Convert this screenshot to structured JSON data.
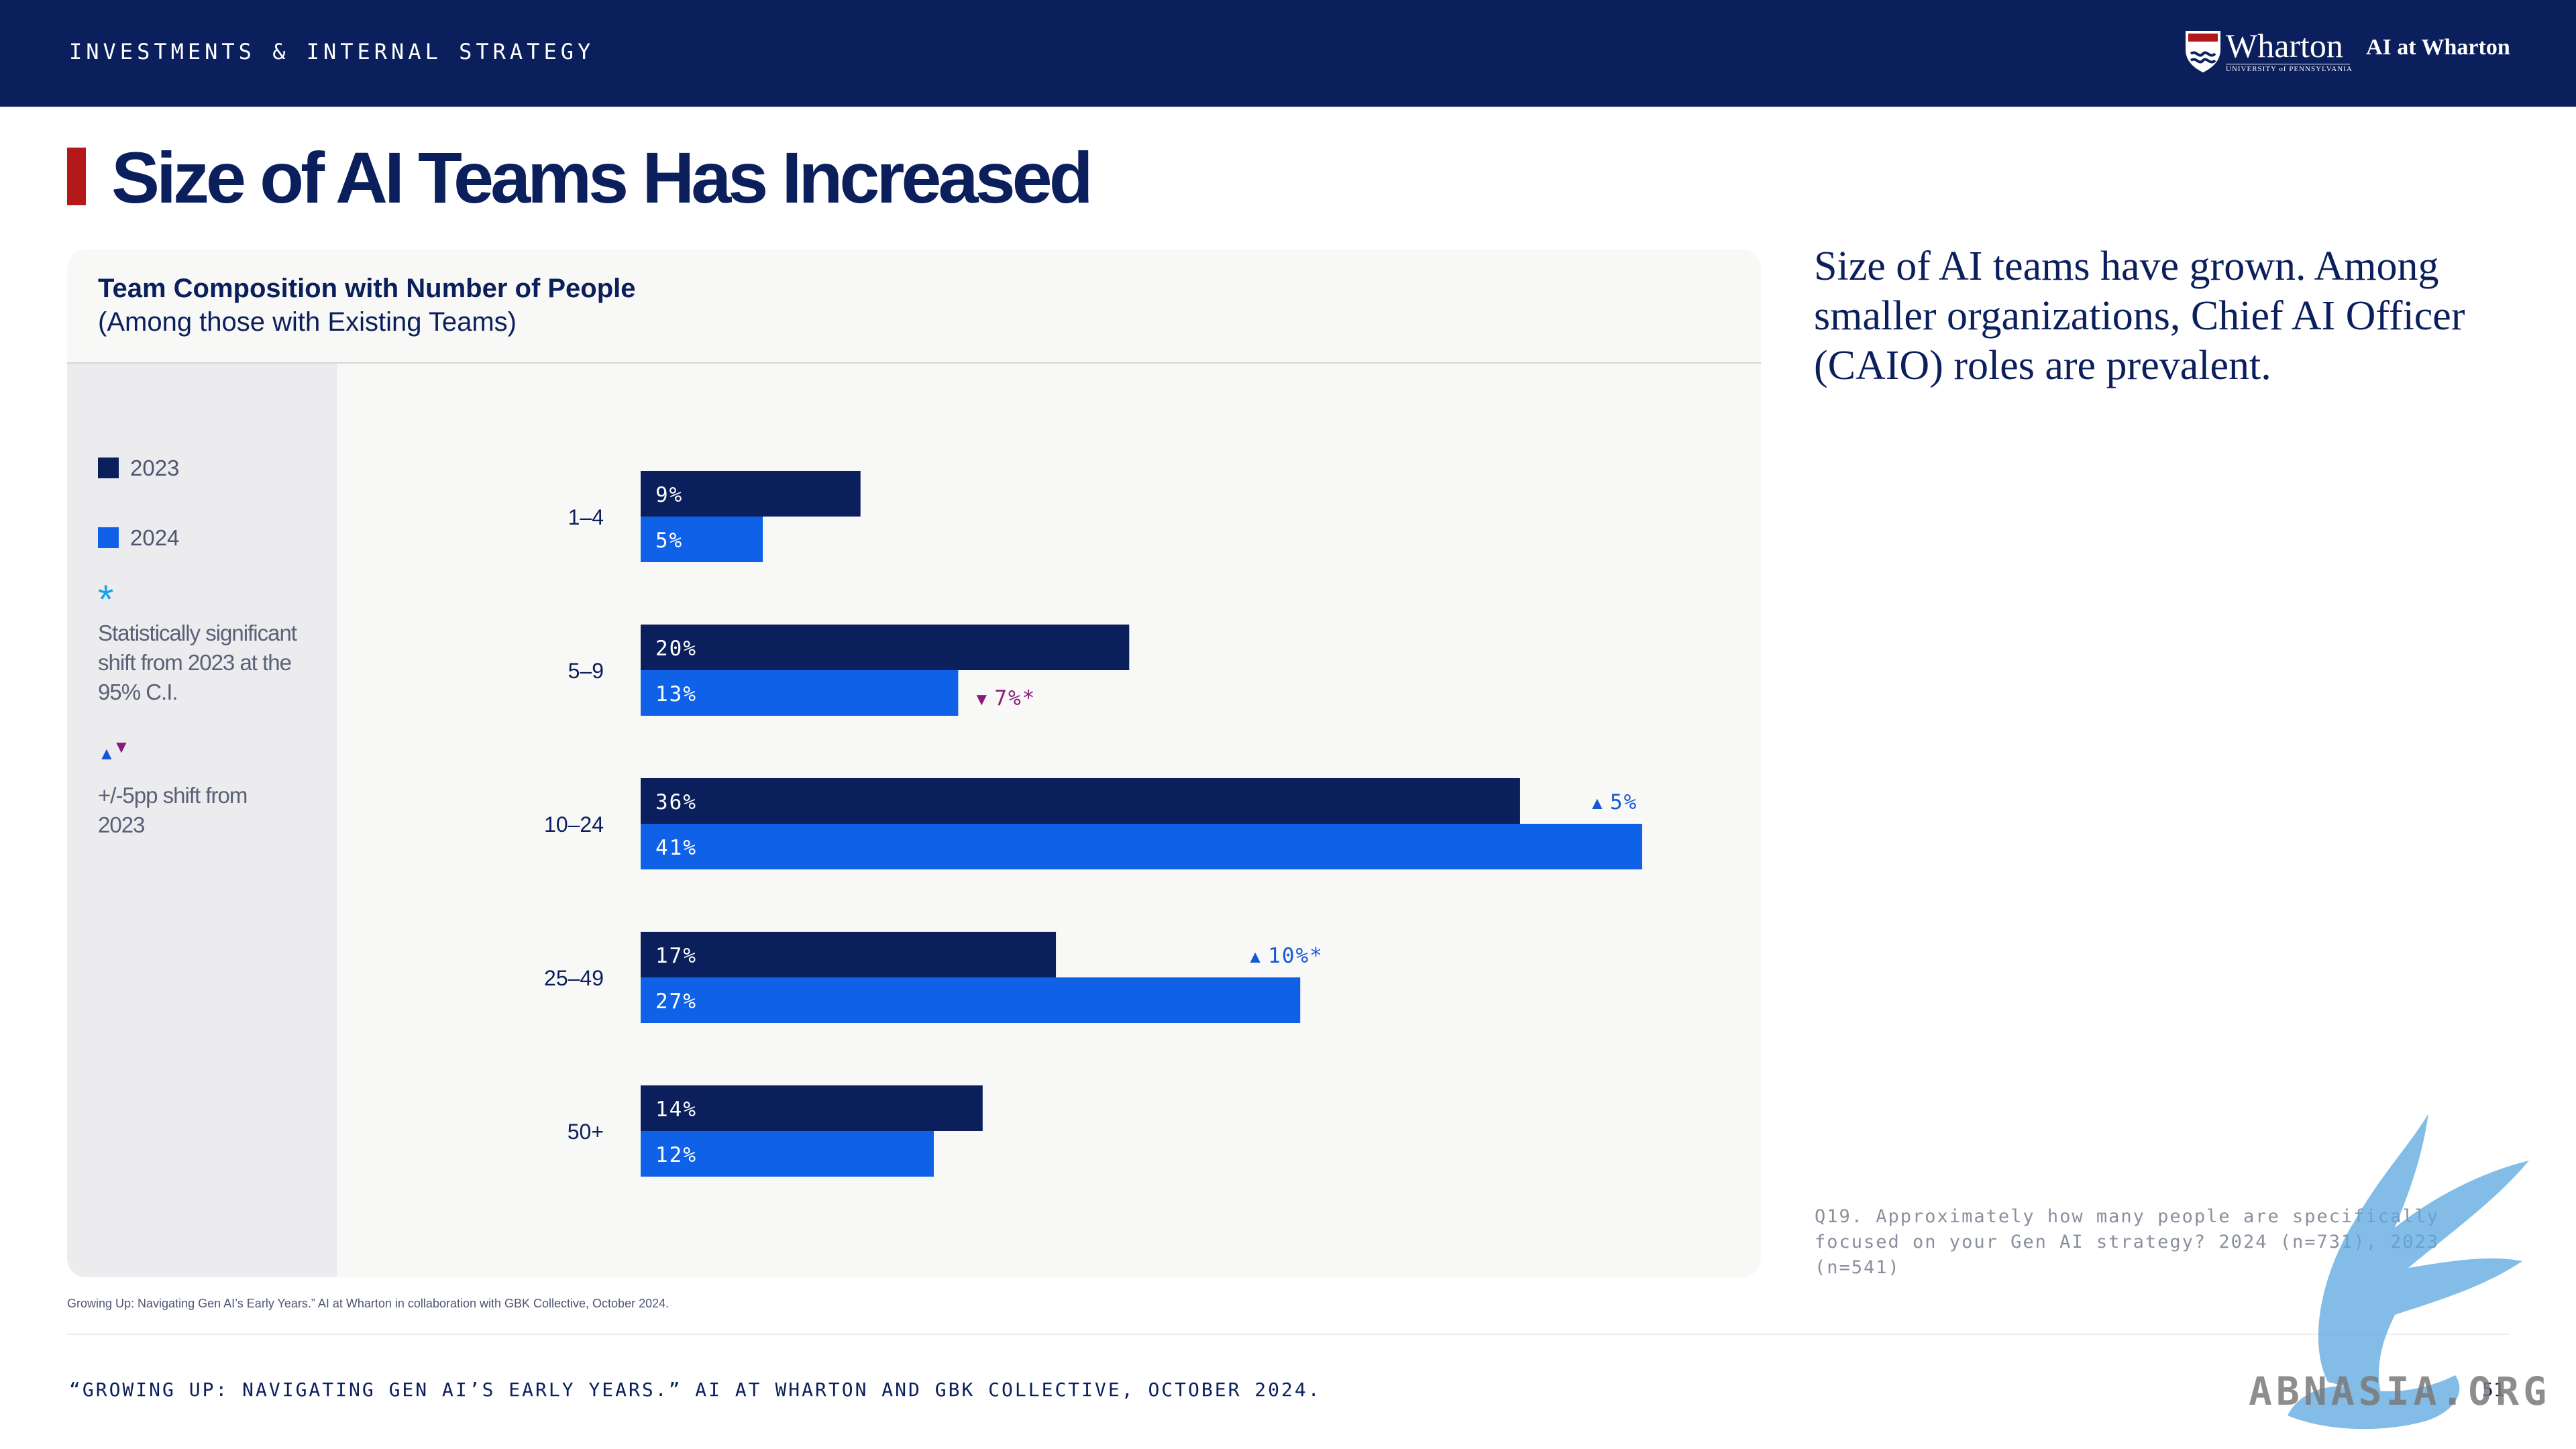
{
  "header": {
    "section": "INVESTMENTS & INTERNAL STRATEGY",
    "logo_wordmark": "Wharton",
    "logo_sub": "UNIVERSITY of PENNSYLVANIA",
    "logo_ai": "AI at Wharton"
  },
  "page": {
    "title": "Size of AI Teams Has Increased",
    "side_text": "Size of AI teams have grown. Among smaller organizations, Chief AI Officer (CAIO) roles are prevalent.",
    "question": "Q19. Approximately how many people are specifically focused on your Gen AI strategy? 2024 (n=731), 2023 (n=541)",
    "chart_source": "Growing Up: Navigating Gen AI’s Early Years.” AI at Wharton in collaboration with GBK Collective, October 2024.",
    "footer": "“GROWING UP: NAVIGATING GEN AI’S EARLY YEARS.” AI AT WHARTON AND GBK COLLECTIVE, OCTOBER 2024.",
    "page_number": "51"
  },
  "legend": {
    "star_note": "Statistically significant shift from 2023 at the 95% C.I.",
    "shift_note": "+/-5pp shift from 2023",
    "star_glyph": "*",
    "up_glyph": "▲",
    "down_glyph": "▼"
  },
  "colors": {
    "navy": "#0b1f5c",
    "blue": "#0f62e8",
    "accent_red": "#b51818",
    "up_blue": "#1458d6",
    "down_purple": "#8a1a7a",
    "star_cyan": "#1aa0e6"
  },
  "chart_data": {
    "type": "bar",
    "orientation": "horizontal",
    "title": "Team Composition with Number of People",
    "subtitle": "(Among those with Existing Teams)",
    "categories": [
      "1–4",
      "5–9",
      "10–24",
      "25–49",
      "50+"
    ],
    "series": [
      {
        "name": "2023",
        "color": "#0b1f5c",
        "values": [
          9,
          20,
          36,
          17,
          14
        ],
        "labels": [
          "9%",
          "20%",
          "36%",
          "17%",
          "14%"
        ]
      },
      {
        "name": "2024",
        "color": "#0f62e8",
        "values": [
          5,
          13,
          41,
          27,
          12
        ],
        "labels": [
          "5%",
          "13%",
          "41%",
          "27%",
          "12%"
        ]
      }
    ],
    "xlim": [
      0,
      45
    ],
    "grid": false,
    "annotations": [
      {
        "category": "5–9",
        "direction": "down",
        "text": "7%*"
      },
      {
        "category": "10–24",
        "direction": "up",
        "text": "5%"
      },
      {
        "category": "25–49",
        "direction": "up",
        "text": "10%*"
      }
    ],
    "legend_placement": "left"
  },
  "watermark": {
    "text": "ABNASIA.ORG"
  }
}
